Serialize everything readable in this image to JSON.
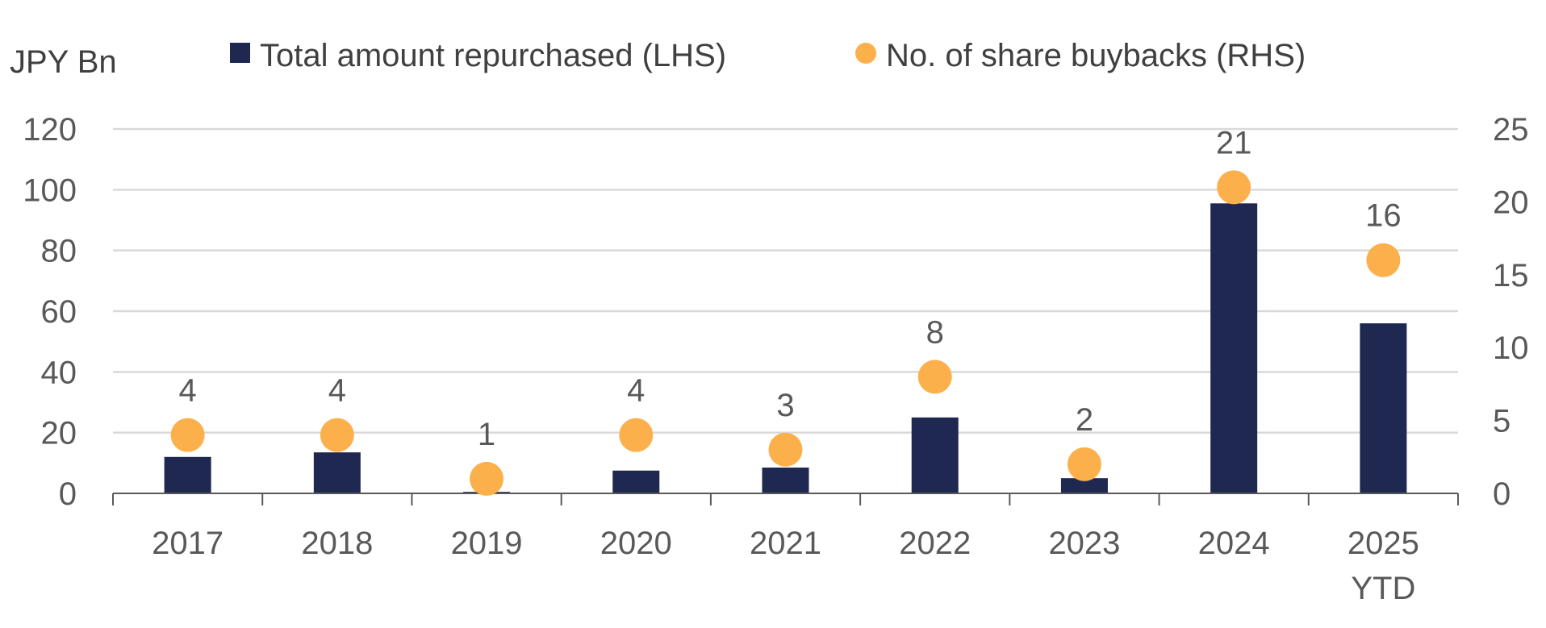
{
  "chart_data": {
    "type": "bar",
    "title": "",
    "unit_label": "JPY Bn",
    "categories": [
      {
        "line1": "2017",
        "line2": ""
      },
      {
        "line1": "2018",
        "line2": ""
      },
      {
        "line1": "2019",
        "line2": ""
      },
      {
        "line1": "2020",
        "line2": ""
      },
      {
        "line1": "2021",
        "line2": ""
      },
      {
        "line1": "2022",
        "line2": ""
      },
      {
        "line1": "2023",
        "line2": ""
      },
      {
        "line1": "2024",
        "line2": ""
      },
      {
        "line1": "2025",
        "line2": "YTD"
      }
    ],
    "series": [
      {
        "name": "Total amount repurchased (LHS)",
        "type": "bar",
        "axis": "left",
        "color": "#1f2851",
        "values": [
          12,
          13.5,
          0.5,
          7.5,
          8.5,
          25,
          5,
          95.5,
          56
        ]
      },
      {
        "name": "No. of share buybacks (RHS)",
        "type": "scatter",
        "axis": "right",
        "color": "#fbb04c",
        "values": [
          4,
          4,
          1,
          4,
          3,
          8,
          2,
          21,
          16
        ],
        "labels": [
          "4",
          "4",
          "1",
          "4",
          "3",
          "8",
          "2",
          "21",
          "16"
        ]
      }
    ],
    "y_left": {
      "min": 0,
      "max": 120,
      "ticks": [
        0,
        20,
        40,
        60,
        80,
        100,
        120
      ]
    },
    "y_right": {
      "min": 0,
      "max": 25,
      "ticks": [
        0,
        5,
        10,
        15,
        20,
        25
      ]
    },
    "grid": true,
    "legend_position": "top"
  }
}
